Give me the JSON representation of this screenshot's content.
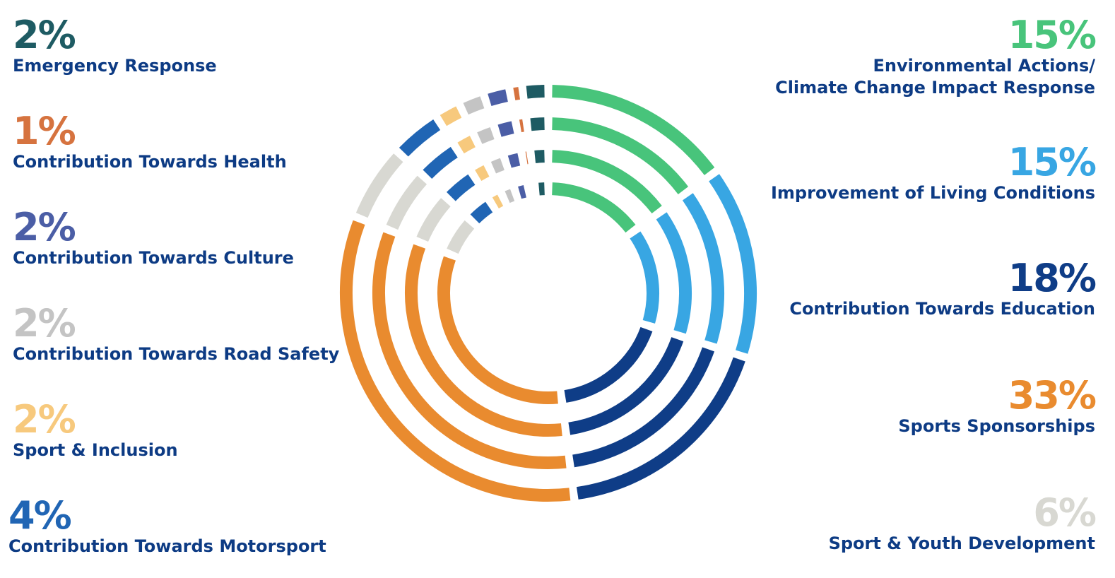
{
  "chart_data": {
    "type": "pie",
    "style": "concentric dashed rings",
    "ring_count": 4,
    "segments": [
      {
        "label": "Environmental Actions/\nClimate Change Impact Response",
        "value": 15,
        "display": "15%",
        "color": "#48c47b",
        "side": "right"
      },
      {
        "label": "Improvement of Living Conditions",
        "value": 15,
        "display": "15%",
        "color": "#38a6e3",
        "side": "right"
      },
      {
        "label": "Contribution Towards Education",
        "value": 18,
        "display": "18%",
        "color": "#0f3d87",
        "side": "right"
      },
      {
        "label": "Sports Sponsorships",
        "value": 33,
        "display": "33%",
        "color": "#e98b2f",
        "side": "right"
      },
      {
        "label": "Sport & Youth Development",
        "value": 6,
        "display": "6%",
        "color": "#d8d8d2",
        "side": "right"
      },
      {
        "label": "Contribution Towards Motorsport",
        "value": 4,
        "display": "4%",
        "color": "#2065b4",
        "side": "left"
      },
      {
        "label": "Sport & Inclusion",
        "value": 2,
        "display": "2%",
        "color": "#f7c97d",
        "side": "left"
      },
      {
        "label": "Contribution Towards Road Safety",
        "value": 2,
        "display": "2%",
        "color": "#c4c4c4",
        "side": "left"
      },
      {
        "label": "Contribution Towards Culture",
        "value": 2,
        "display": "2%",
        "color": "#4b5ea6",
        "side": "left"
      },
      {
        "label": "Contribution Towards Health",
        "value": 1,
        "display": "1%",
        "color": "#d6733f",
        "side": "left"
      },
      {
        "label": "Emergency Response",
        "value": 2,
        "display": "2%",
        "color": "#1e5b63",
        "side": "left"
      }
    ]
  }
}
